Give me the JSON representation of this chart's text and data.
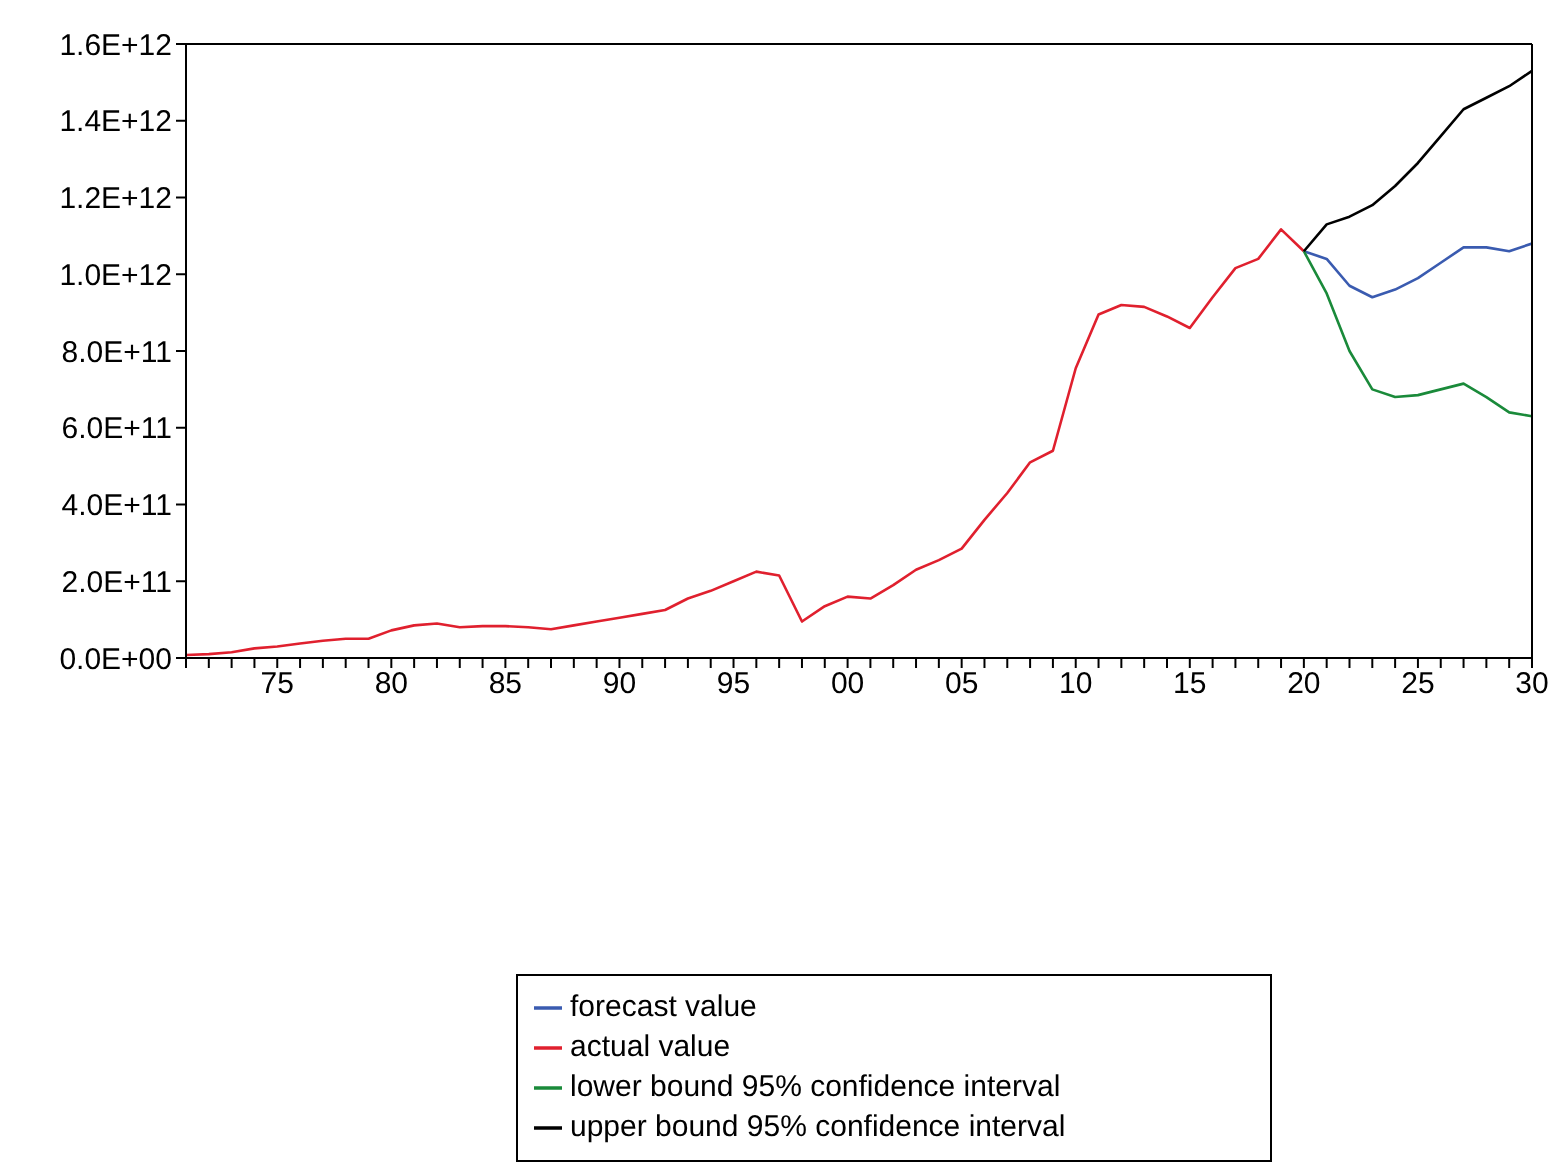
{
  "chart_data": {
    "type": "line",
    "legend": "bottom",
    "grid": false,
    "marker": "none",
    "line_style": "solid",
    "xlim": [
      1971,
      2030
    ],
    "xticks": [
      {
        "value": 1971,
        "label": null
      },
      {
        "value": 1972,
        "label": null
      },
      {
        "value": 1973,
        "label": null
      },
      {
        "value": 1974,
        "label": null
      },
      {
        "value": 1975,
        "label": "75"
      },
      {
        "value": 1976,
        "label": null
      },
      {
        "value": 1977,
        "label": null
      },
      {
        "value": 1978,
        "label": null
      },
      {
        "value": 1979,
        "label": null
      },
      {
        "value": 1980,
        "label": "80"
      },
      {
        "value": 1981,
        "label": null
      },
      {
        "value": 1982,
        "label": null
      },
      {
        "value": 1983,
        "label": null
      },
      {
        "value": 1984,
        "label": null
      },
      {
        "value": 1985,
        "label": "85"
      },
      {
        "value": 1986,
        "label": null
      },
      {
        "value": 1987,
        "label": null
      },
      {
        "value": 1988,
        "label": null
      },
      {
        "value": 1989,
        "label": null
      },
      {
        "value": 1990,
        "label": "90"
      },
      {
        "value": 1991,
        "label": null
      },
      {
        "value": 1992,
        "label": null
      },
      {
        "value": 1993,
        "label": null
      },
      {
        "value": 1994,
        "label": null
      },
      {
        "value": 1995,
        "label": "95"
      },
      {
        "value": 1996,
        "label": null
      },
      {
        "value": 1997,
        "label": null
      },
      {
        "value": 1998,
        "label": null
      },
      {
        "value": 1999,
        "label": null
      },
      {
        "value": 2000,
        "label": "00"
      },
      {
        "value": 2001,
        "label": null
      },
      {
        "value": 2002,
        "label": null
      },
      {
        "value": 2003,
        "label": null
      },
      {
        "value": 2004,
        "label": null
      },
      {
        "value": 2005,
        "label": "05"
      },
      {
        "value": 2006,
        "label": null
      },
      {
        "value": 2007,
        "label": null
      },
      {
        "value": 2008,
        "label": null
      },
      {
        "value": 2009,
        "label": null
      },
      {
        "value": 2010,
        "label": "10"
      },
      {
        "value": 2011,
        "label": null
      },
      {
        "value": 2012,
        "label": null
      },
      {
        "value": 2013,
        "label": null
      },
      {
        "value": 2014,
        "label": null
      },
      {
        "value": 2015,
        "label": "15"
      },
      {
        "value": 2016,
        "label": null
      },
      {
        "value": 2017,
        "label": null
      },
      {
        "value": 2018,
        "label": null
      },
      {
        "value": 2019,
        "label": null
      },
      {
        "value": 2020,
        "label": "20"
      },
      {
        "value": 2021,
        "label": null
      },
      {
        "value": 2022,
        "label": null
      },
      {
        "value": 2023,
        "label": null
      },
      {
        "value": 2024,
        "label": null
      },
      {
        "value": 2025,
        "label": "25"
      },
      {
        "value": 2026,
        "label": null
      },
      {
        "value": 2027,
        "label": null
      },
      {
        "value": 2028,
        "label": null
      },
      {
        "value": 2029,
        "label": null
      },
      {
        "value": 2030,
        "label": "30"
      }
    ],
    "ylim": [
      0,
      1600000000000.0
    ],
    "yticks": [
      {
        "value": 0,
        "label": "0.0E+00"
      },
      {
        "value": 200000000000.0,
        "label": "2.0E+11"
      },
      {
        "value": 400000000000.0,
        "label": "4.0E+11"
      },
      {
        "value": 600000000000.0,
        "label": "6.0E+11"
      },
      {
        "value": 800000000000.0,
        "label": "8.0E+11"
      },
      {
        "value": 1000000000000.0,
        "label": "1.0E+12"
      },
      {
        "value": 1200000000000.0,
        "label": "1.2E+12"
      },
      {
        "value": 1400000000000.0,
        "label": "1.4E+12"
      },
      {
        "value": 1600000000000.0,
        "label": "1.6E+12"
      }
    ],
    "series": [
      {
        "name": "forecast value",
        "color": "#3a5bb0",
        "x": [
          2020,
          2021,
          2022,
          2023,
          2024,
          2025,
          2026,
          2027,
          2028,
          2029,
          2030
        ],
        "values": [
          1060000000000.0,
          1040000000000.0,
          970000000000.0,
          940000000000.0,
          960000000000.0,
          990000000000.0,
          1030000000000.0,
          1070000000000.0,
          1070000000000.0,
          1060000000000.0,
          1080000000000.0
        ]
      },
      {
        "name": "actual value",
        "color": "#e0202e",
        "x": [
          1971,
          1972,
          1973,
          1974,
          1975,
          1976,
          1977,
          1978,
          1979,
          1980,
          1981,
          1982,
          1983,
          1984,
          1985,
          1986,
          1987,
          1988,
          1989,
          1990,
          1991,
          1992,
          1993,
          1994,
          1995,
          1996,
          1997,
          1998,
          1999,
          2000,
          2001,
          2002,
          2003,
          2004,
          2005,
          2006,
          2007,
          2008,
          2009,
          2010,
          2011,
          2012,
          2013,
          2014,
          2015,
          2016,
          2017,
          2018,
          2019,
          2020
        ],
        "values": [
          8000000000.0,
          10000000000.0,
          15000000000.0,
          25000000000.0,
          30000000000.0,
          38000000000.0,
          45000000000.0,
          50000000000.0,
          50000000000.0,
          72000000000.0,
          85000000000.0,
          90000000000.0,
          80000000000.0,
          83000000000.0,
          83000000000.0,
          80000000000.0,
          75000000000.0,
          85000000000.0,
          95000000000.0,
          105000000000.0,
          115000000000.0,
          125000000000.0,
          155000000000.0,
          175000000000.0,
          200000000000.0,
          225000000000.0,
          215000000000.0,
          95000000000.0,
          135000000000.0,
          160000000000.0,
          155000000000.0,
          190000000000.0,
          230000000000.0,
          255000000000.0,
          285000000000.0,
          360000000000.0,
          430000000000.0,
          510000000000.0,
          540000000000.0,
          755000000000.0,
          895000000000.0,
          920000000000.0,
          915000000000.0,
          890000000000.0,
          860000000000.0,
          940000000000.0,
          1016000000000.0,
          1040000000000.0,
          1117000000000.0,
          1060000000000.0
        ]
      },
      {
        "name": "lower bound 95% confidence interval",
        "color": "#1a8a3a",
        "x": [
          2020,
          2021,
          2022,
          2023,
          2024,
          2025,
          2026,
          2027,
          2028,
          2029,
          2030
        ],
        "values": [
          1060000000000.0,
          950000000000.0,
          800000000000.0,
          700000000000.0,
          680000000000.0,
          685000000000.0,
          700000000000.0,
          715000000000.0,
          680000000000.0,
          640000000000.0,
          630000000000.0
        ]
      },
      {
        "name": "upper bound 95% confidence interval",
        "color": "#000000",
        "x": [
          2020,
          2021,
          2022,
          2023,
          2024,
          2025,
          2026,
          2027,
          2028,
          2029,
          2030
        ],
        "values": [
          1060000000000.0,
          1130000000000.0,
          1150000000000.0,
          1180000000000.0,
          1230000000000.0,
          1290000000000.0,
          1360000000000.0,
          1430000000000.0,
          1460000000000.0,
          1490000000000.0,
          1530000000000.0
        ]
      }
    ]
  }
}
